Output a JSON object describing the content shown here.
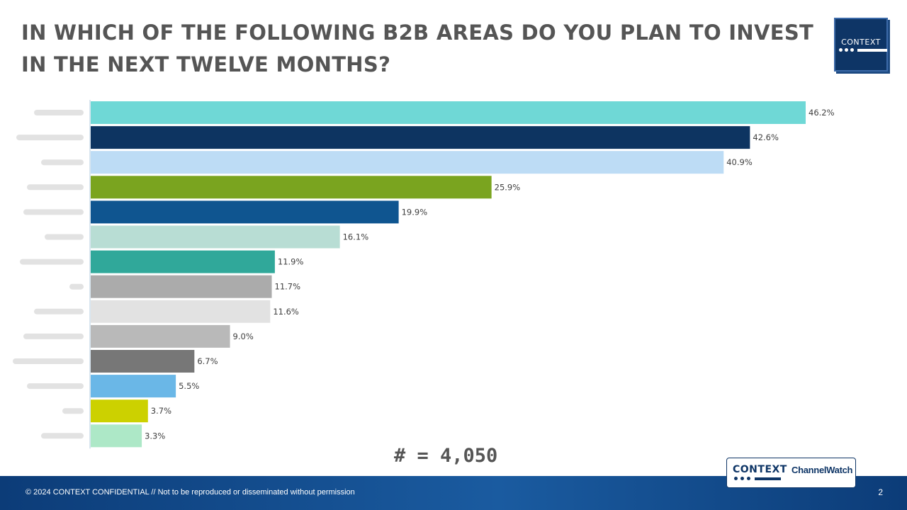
{
  "page": {
    "title": "IN WHICH OF THE FOLLOWING B2B AREAS DO YOU PLAN TO INVEST IN THE NEXT TWELVE MONTHS?",
    "sample_size": "# = 4,050",
    "footer_text": "© 2024 CONTEXT CONFIDENTIAL // Not to be reproduced or disseminated without permission",
    "page_number": "2",
    "logo_top_text": "CONTEXT",
    "logo_bottom_primary": "CONTEXT",
    "logo_bottom_secondary": "ChannelWatch",
    "footer_colors": [
      "#0c3c78",
      "#1a5ba0"
    ]
  },
  "chart_data": {
    "type": "bar",
    "orientation": "horizontal",
    "categories_note": "category labels are blurred/illegible in the source",
    "values": [
      46.2,
      42.6,
      40.9,
      25.9,
      19.9,
      16.1,
      11.9,
      11.7,
      11.6,
      9.0,
      6.7,
      5.5,
      3.7,
      3.3
    ],
    "labels": [
      "46.2%",
      "42.6%",
      "40.9%",
      "25.9%",
      "19.9%",
      "16.1%",
      "11.9%",
      "11.7%",
      "11.6%",
      "9.0%",
      "6.7%",
      "5.5%",
      "3.7%",
      "3.3%"
    ],
    "colors": [
      "#6fd8d6",
      "#0d3461",
      "#bddcf5",
      "#7aa41f",
      "#0f5590",
      "#b8ddd4",
      "#30a89a",
      "#ababab",
      "#e2e2e2",
      "#b9b9b9",
      "#777777",
      "#6ab7e7",
      "#ccd100",
      "#ade8c7"
    ],
    "unit": "%",
    "xlim": [
      0,
      47
    ],
    "grid": false,
    "legend": false
  }
}
